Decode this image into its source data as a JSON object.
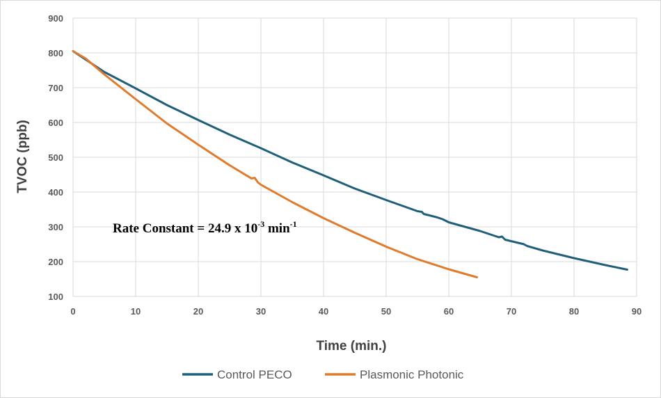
{
  "chart_data": {
    "type": "line",
    "xlabel": "Time (min.)",
    "ylabel": "TVOC (ppb)",
    "xlim": [
      0,
      90
    ],
    "ylim": [
      100,
      900
    ],
    "x_ticks": [
      "0",
      "10",
      "20",
      "30",
      "40",
      "50",
      "60",
      "70",
      "80",
      "90"
    ],
    "y_ticks": [
      "100",
      "200",
      "300",
      "400",
      "500",
      "600",
      "700",
      "800",
      "900"
    ],
    "grid": true,
    "legend_position": "bottom",
    "annotation": {
      "prefix": "Rate Constant = 24.9 x 10",
      "exponent": "-3",
      "unit": " min",
      "unit_exponent": "-1"
    },
    "series": [
      {
        "name": "Control PECO",
        "color": "#1f5f7a",
        "x": [
          0,
          5,
          10,
          15,
          20,
          25,
          30,
          35,
          40,
          45,
          50,
          55,
          55.7,
          56,
          58,
          59,
          60,
          65,
          68,
          68.5,
          69,
          72,
          72.5,
          75,
          80,
          85,
          88.5
        ],
        "y": [
          805,
          745,
          698,
          650,
          607,
          565,
          526,
          485,
          448,
          410,
          377,
          345,
          343,
          337,
          328,
          322,
          313,
          288,
          270,
          272,
          263,
          250,
          245,
          232,
          210,
          190,
          177
        ]
      },
      {
        "name": "Plasmonic Photonic",
        "color": "#e07b2e",
        "x": [
          0,
          2,
          5,
          10,
          15,
          20,
          25,
          28.5,
          29,
          29.5,
          30,
          35,
          40,
          45,
          50,
          55,
          60,
          64.5
        ],
        "y": [
          805,
          784,
          738,
          667,
          597,
          536,
          477,
          439,
          441,
          428,
          421,
          371,
          325,
          283,
          243,
          207,
          178,
          155
        ]
      }
    ]
  }
}
